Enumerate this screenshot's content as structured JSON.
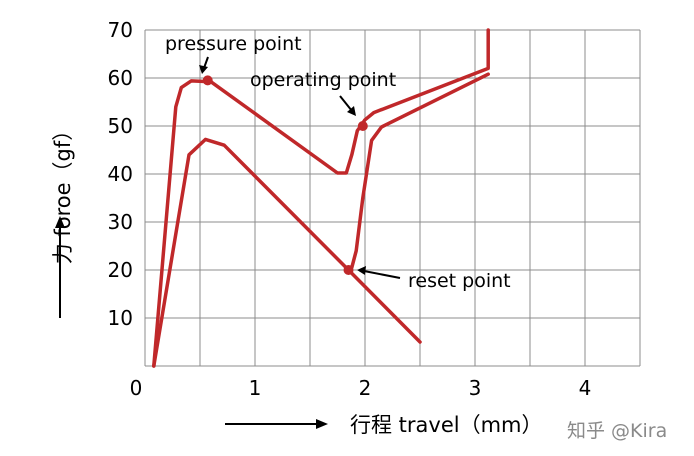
{
  "chart_data": {
    "type": "line",
    "title": "",
    "xlabel": "行程 travel（mm）",
    "ylabel": "力 foroe（gf）",
    "xlim": [
      0,
      4.5
    ],
    "ylim": [
      0,
      70
    ],
    "xticks": [
      0,
      1,
      2,
      3,
      4
    ],
    "yticks": [
      10,
      20,
      30,
      40,
      50,
      60,
      70
    ],
    "grid": true,
    "series": [
      {
        "name": "",
        "points": [
          [
            0.08,
            0
          ],
          [
            0.28,
            54
          ],
          [
            0.33,
            58
          ],
          [
            0.42,
            59.4
          ],
          [
            0.6,
            59.2
          ],
          [
            1.75,
            40.2
          ],
          [
            1.83,
            40.2
          ],
          [
            1.88,
            44
          ],
          [
            1.93,
            49
          ],
          [
            2.0,
            51.3
          ],
          [
            2.08,
            52.8
          ],
          [
            3.12,
            62
          ],
          [
            3.12,
            70
          ]
        ]
      },
      {
        "name": "",
        "points": [
          [
            0.08,
            0
          ],
          [
            0.4,
            44
          ],
          [
            0.55,
            47.2
          ],
          [
            0.72,
            46
          ],
          [
            1.85,
            20
          ],
          [
            1.88,
            20.5
          ],
          [
            1.92,
            24
          ],
          [
            1.98,
            35
          ],
          [
            2.06,
            47
          ],
          [
            2.15,
            49.8
          ],
          [
            3.12,
            60.8
          ]
        ]
      },
      {
        "name": "",
        "points": [
          [
            1.85,
            20
          ],
          [
            2.5,
            5
          ]
        ]
      }
    ],
    "markers": [
      {
        "label": "pressure point",
        "x": 0.57,
        "y": 59.5
      },
      {
        "label": "operating point",
        "x": 1.98,
        "y": 50
      },
      {
        "label": "reset point",
        "x": 1.85,
        "y": 20
      }
    ]
  },
  "watermark": "知乎 @Kira",
  "colors": {
    "curve": "#c0282a",
    "grid": "#8c8c8c",
    "text": "#000000",
    "watermark": "#8a8a8a"
  }
}
